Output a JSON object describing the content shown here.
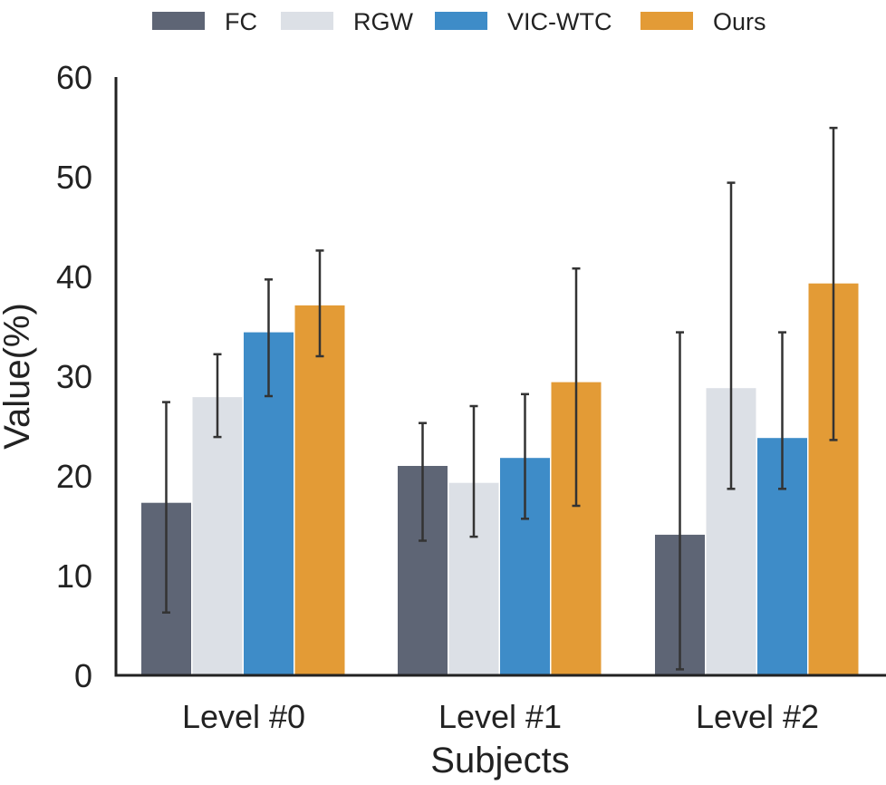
{
  "chart_data": {
    "type": "bar",
    "categories": [
      "Level #0",
      "Level #1",
      "Level #2"
    ],
    "series": [
      {
        "name": "FC",
        "color": "#5e6575",
        "values": [
          17.3,
          21.0,
          14.1
        ],
        "err_low": [
          6.3,
          13.5,
          0.6
        ],
        "err_high": [
          27.4,
          25.3,
          34.4
        ]
      },
      {
        "name": "RGW",
        "color": "#dce0e6",
        "values": [
          27.9,
          19.3,
          28.8
        ],
        "err_low": [
          23.9,
          13.9,
          18.7
        ],
        "err_high": [
          32.2,
          27.0,
          49.4
        ]
      },
      {
        "name": "VIC-WTC",
        "color": "#3e8cc8",
        "values": [
          34.4,
          21.8,
          23.8
        ],
        "err_low": [
          28.0,
          15.7,
          18.7
        ],
        "err_high": [
          39.7,
          28.2,
          34.4
        ]
      },
      {
        "name": "Ours",
        "color": "#e39b36",
        "values": [
          37.1,
          29.4,
          39.3
        ],
        "err_low": [
          32.0,
          17.0,
          23.6
        ],
        "err_high": [
          42.6,
          40.8,
          54.9
        ]
      }
    ],
    "xlabel": "Subjects",
    "ylabel": "Value(%)",
    "ylim": [
      0,
      60
    ],
    "yticks": [
      "0",
      "10",
      "20",
      "30",
      "40",
      "50",
      "60"
    ],
    "grid": false,
    "legend_position": "top-center",
    "error_bar_color": "#333333"
  }
}
